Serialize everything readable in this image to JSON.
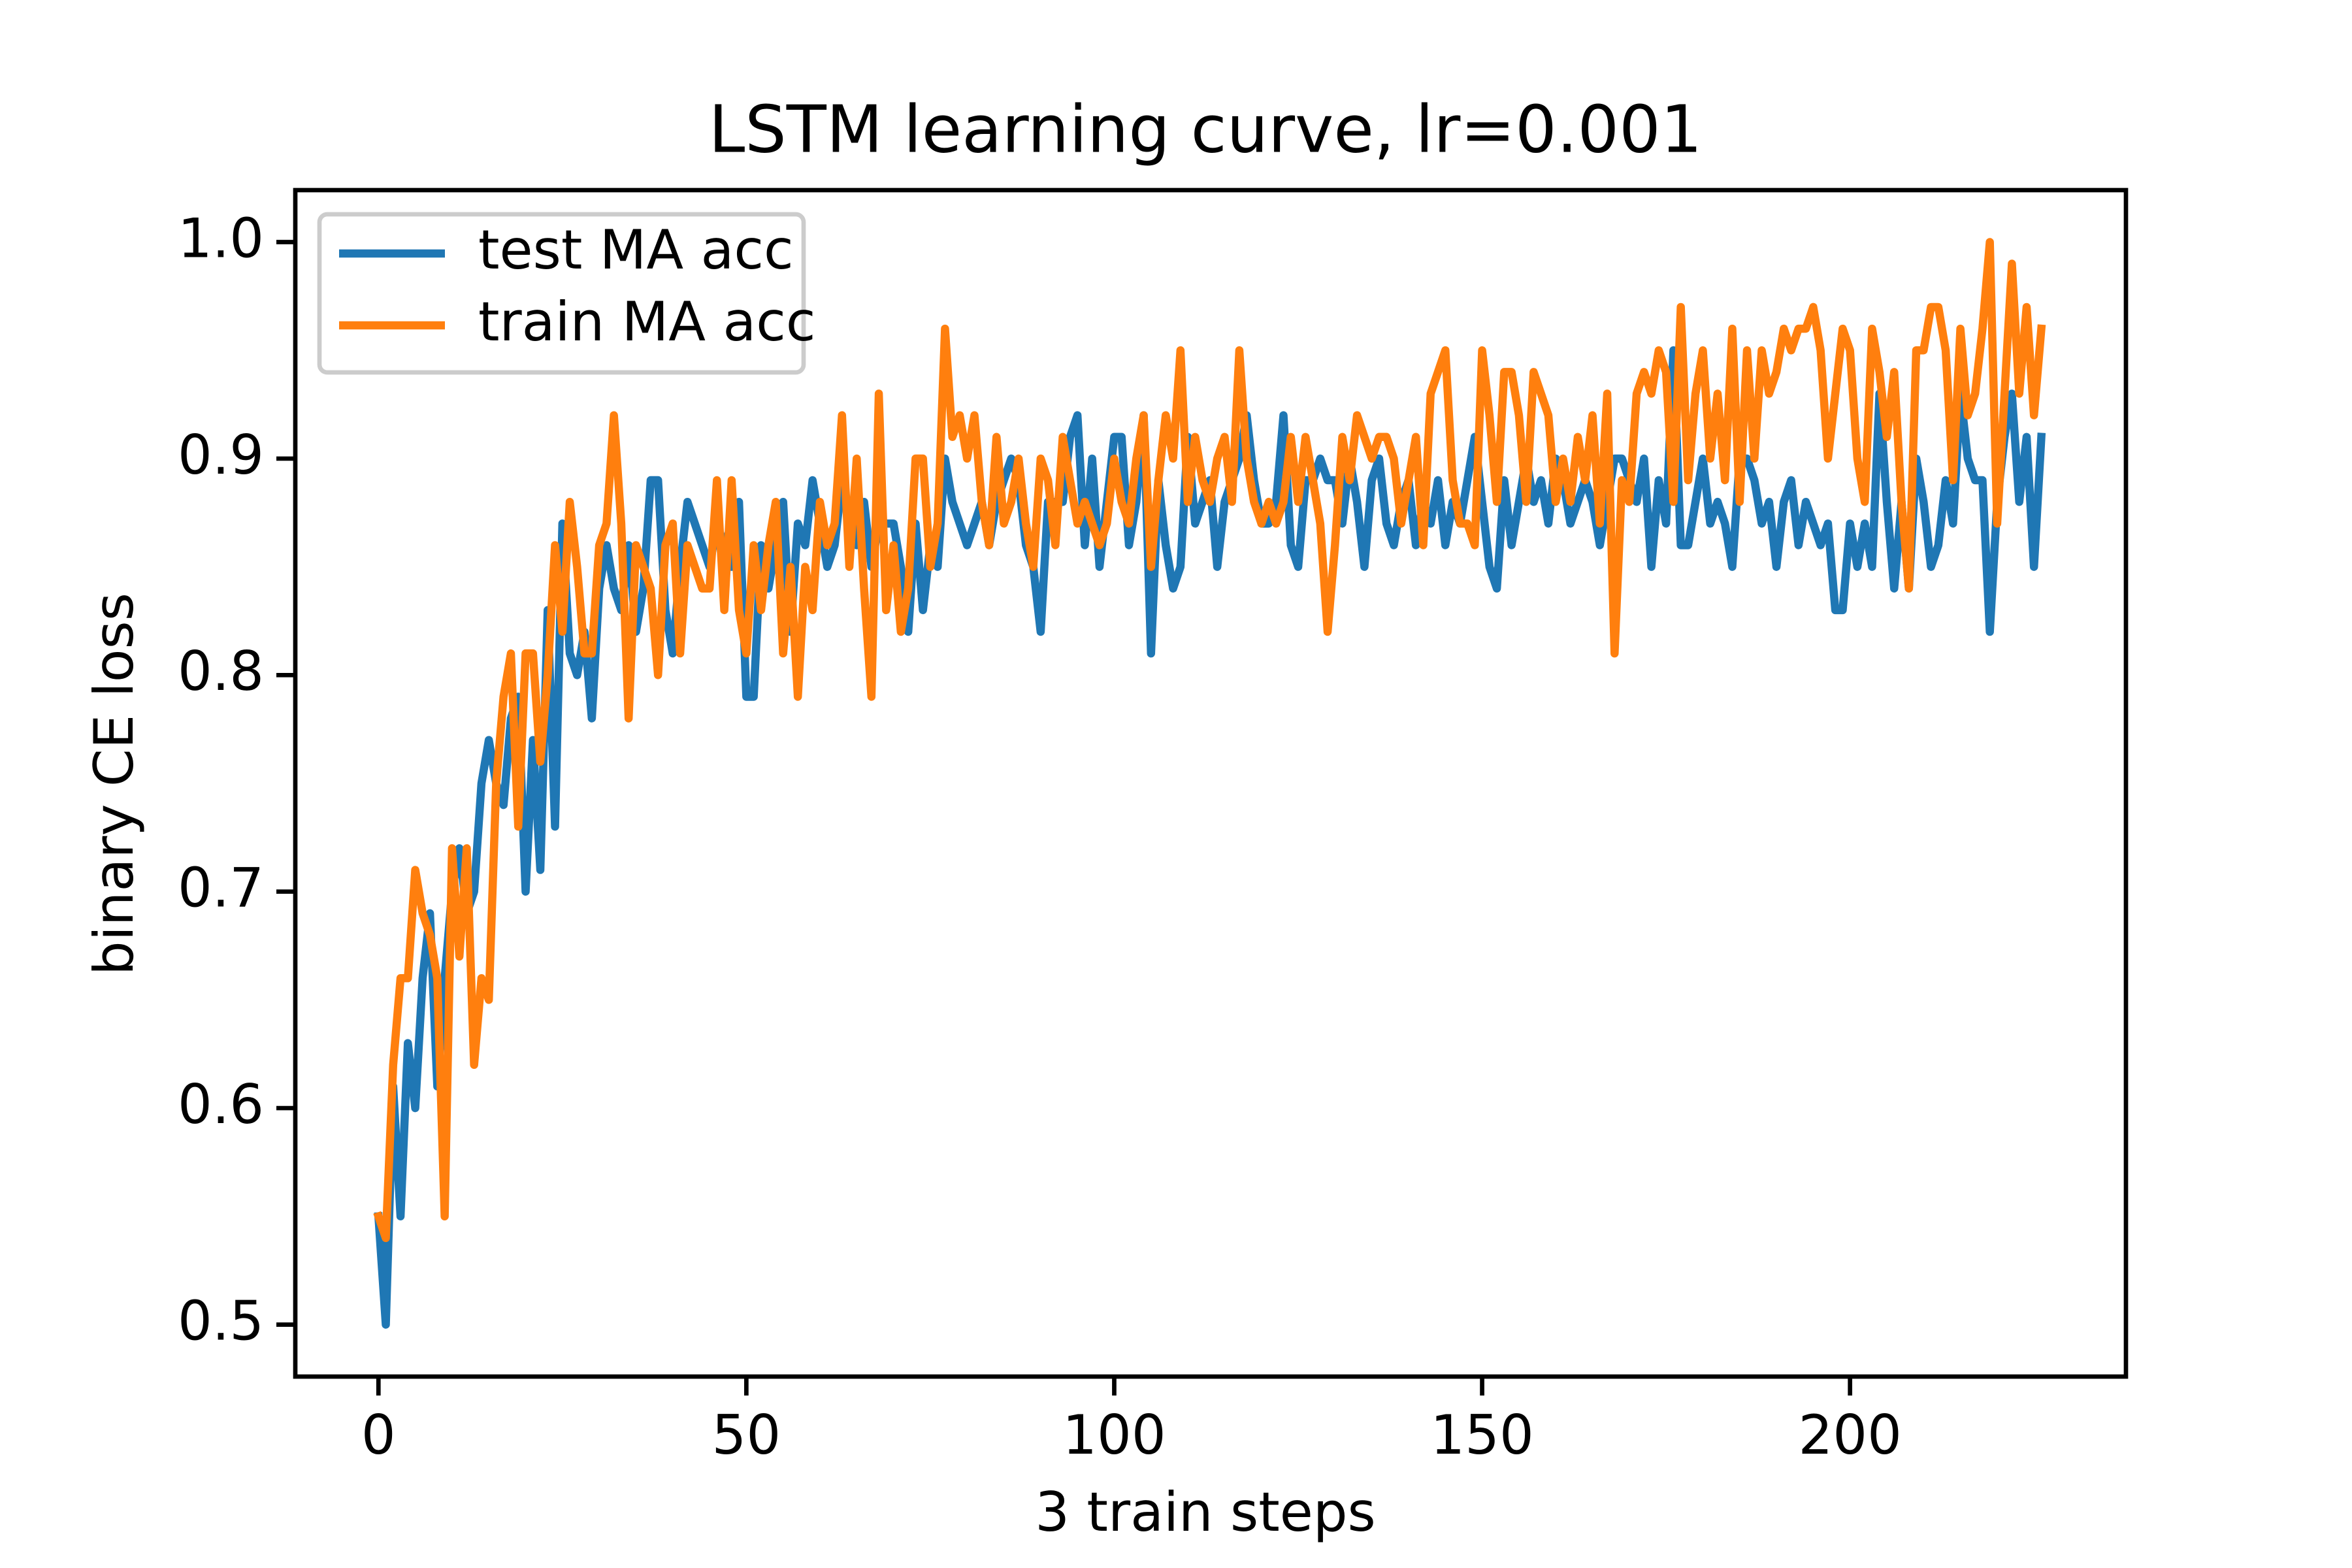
{
  "chart_data": {
    "type": "line",
    "title": "LSTM learning curve, lr=0.001",
    "x_label": "3 train steps",
    "y_label": "binary CE loss",
    "x": [
      0,
      1,
      2,
      3,
      4,
      5,
      6,
      7,
      8,
      9,
      10,
      11,
      12,
      13,
      14,
      15,
      16,
      17,
      18,
      19,
      20,
      21,
      22,
      23,
      24,
      25,
      26,
      27,
      28,
      29,
      30,
      31,
      32,
      33,
      34,
      35,
      36,
      37,
      38,
      39,
      40,
      41,
      42,
      43,
      44,
      45,
      46,
      47,
      48,
      49,
      50,
      51,
      52,
      53,
      54,
      55,
      56,
      57,
      58,
      59,
      60,
      61,
      62,
      63,
      64,
      65,
      66,
      67,
      68,
      69,
      70,
      71,
      72,
      73,
      74,
      75,
      76,
      77,
      78,
      79,
      80,
      81,
      82,
      83,
      84,
      85,
      86,
      87,
      88,
      89,
      90,
      91,
      92,
      93,
      94,
      95,
      96,
      97,
      98,
      99,
      100,
      101,
      102,
      103,
      104,
      105,
      106,
      107,
      108,
      109,
      110,
      111,
      112,
      113,
      114,
      115,
      116,
      117,
      118,
      119,
      120,
      121,
      122,
      123,
      124,
      125,
      126,
      127,
      128,
      129,
      130,
      131,
      132,
      133,
      134,
      135,
      136,
      137,
      138,
      139,
      140,
      141,
      142,
      143,
      144,
      145,
      146,
      147,
      148,
      149,
      150,
      151,
      152,
      153,
      154,
      155,
      156,
      157,
      158,
      159,
      160,
      161,
      162,
      163,
      164,
      165,
      166,
      167,
      168,
      169,
      170,
      171,
      172,
      173,
      174,
      175,
      176,
      177,
      178,
      179,
      180,
      181,
      182,
      183,
      184,
      185,
      186,
      187,
      188,
      189,
      190,
      191,
      192,
      193,
      194,
      195,
      196,
      197,
      198,
      199,
      200,
      201,
      202,
      203,
      204,
      205,
      206,
      207,
      208,
      209,
      210,
      211,
      212,
      213,
      214,
      215,
      216,
      217,
      218,
      219,
      220,
      221,
      222,
      223,
      224,
      225,
      226
    ],
    "series": [
      {
        "name": "test MA acc",
        "color": "#1f77b4",
        "values": [
          0.55,
          0.5,
          0.61,
          0.55,
          0.63,
          0.6,
          0.66,
          0.69,
          0.61,
          0.66,
          0.7,
          0.72,
          0.69,
          0.7,
          0.75,
          0.77,
          0.75,
          0.74,
          0.78,
          0.79,
          0.7,
          0.77,
          0.71,
          0.83,
          0.73,
          0.87,
          0.81,
          0.8,
          0.82,
          0.78,
          0.84,
          0.86,
          0.84,
          0.83,
          0.86,
          0.82,
          0.84,
          0.89,
          0.89,
          0.83,
          0.81,
          0.85,
          0.88,
          0.87,
          0.86,
          0.85,
          0.87,
          0.86,
          0.85,
          0.88,
          0.79,
          0.79,
          0.86,
          0.84,
          0.86,
          0.88,
          0.82,
          0.87,
          0.86,
          0.89,
          0.87,
          0.85,
          0.86,
          0.89,
          0.87,
          0.86,
          0.88,
          0.85,
          0.87,
          0.87,
          0.87,
          0.85,
          0.82,
          0.87,
          0.83,
          0.86,
          0.85,
          0.9,
          0.88,
          0.87,
          0.86,
          0.87,
          0.88,
          0.86,
          0.88,
          0.89,
          0.9,
          0.89,
          0.86,
          0.85,
          0.82,
          0.88,
          0.88,
          0.88,
          0.91,
          0.92,
          0.86,
          0.9,
          0.85,
          0.88,
          0.91,
          0.91,
          0.86,
          0.88,
          0.92,
          0.81,
          0.89,
          0.86,
          0.84,
          0.85,
          0.91,
          0.87,
          0.88,
          0.89,
          0.85,
          0.88,
          0.89,
          0.9,
          0.92,
          0.89,
          0.87,
          0.87,
          0.88,
          0.92,
          0.86,
          0.85,
          0.89,
          0.89,
          0.9,
          0.89,
          0.89,
          0.87,
          0.9,
          0.88,
          0.85,
          0.89,
          0.9,
          0.87,
          0.86,
          0.88,
          0.89,
          0.86,
          0.88,
          0.87,
          0.89,
          0.86,
          0.88,
          0.87,
          0.89,
          0.91,
          0.88,
          0.85,
          0.84,
          0.89,
          0.86,
          0.88,
          0.9,
          0.88,
          0.89,
          0.87,
          0.9,
          0.89,
          0.87,
          0.88,
          0.89,
          0.88,
          0.86,
          0.88,
          0.9,
          0.9,
          0.89,
          0.88,
          0.9,
          0.85,
          0.89,
          0.87,
          0.95,
          0.86,
          0.86,
          0.88,
          0.9,
          0.87,
          0.88,
          0.87,
          0.85,
          0.9,
          0.9,
          0.89,
          0.87,
          0.88,
          0.85,
          0.88,
          0.89,
          0.86,
          0.88,
          0.87,
          0.86,
          0.87,
          0.83,
          0.83,
          0.87,
          0.85,
          0.87,
          0.85,
          0.93,
          0.88,
          0.84,
          0.88,
          0.84,
          0.9,
          0.88,
          0.85,
          0.86,
          0.89,
          0.87,
          0.93,
          0.9,
          0.89,
          0.89,
          0.82,
          0.88,
          0.91,
          0.93,
          0.88,
          0.91,
          0.85,
          0.91
        ]
      },
      {
        "name": "train MA acc",
        "color": "#ff7f0e",
        "values": [
          0.55,
          0.54,
          0.62,
          0.66,
          0.66,
          0.71,
          0.69,
          0.68,
          0.66,
          0.55,
          0.72,
          0.67,
          0.72,
          0.62,
          0.66,
          0.65,
          0.75,
          0.79,
          0.81,
          0.73,
          0.81,
          0.81,
          0.76,
          0.8,
          0.86,
          0.82,
          0.88,
          0.85,
          0.81,
          0.81,
          0.86,
          0.87,
          0.92,
          0.87,
          0.78,
          0.86,
          0.85,
          0.84,
          0.8,
          0.86,
          0.87,
          0.81,
          0.86,
          0.85,
          0.84,
          0.84,
          0.89,
          0.83,
          0.89,
          0.83,
          0.81,
          0.86,
          0.83,
          0.86,
          0.88,
          0.81,
          0.85,
          0.79,
          0.85,
          0.83,
          0.88,
          0.86,
          0.87,
          0.92,
          0.85,
          0.9,
          0.84,
          0.79,
          0.93,
          0.83,
          0.86,
          0.82,
          0.84,
          0.9,
          0.9,
          0.85,
          0.87,
          0.96,
          0.91,
          0.92,
          0.9,
          0.92,
          0.88,
          0.86,
          0.91,
          0.87,
          0.88,
          0.9,
          0.87,
          0.85,
          0.9,
          0.89,
          0.86,
          0.91,
          0.89,
          0.87,
          0.88,
          0.87,
          0.86,
          0.87,
          0.9,
          0.88,
          0.87,
          0.9,
          0.92,
          0.85,
          0.89,
          0.92,
          0.9,
          0.95,
          0.88,
          0.91,
          0.89,
          0.88,
          0.9,
          0.91,
          0.88,
          0.95,
          0.9,
          0.88,
          0.87,
          0.88,
          0.87,
          0.88,
          0.91,
          0.88,
          0.91,
          0.89,
          0.87,
          0.82,
          0.86,
          0.91,
          0.89,
          0.92,
          0.91,
          0.9,
          0.91,
          0.91,
          0.9,
          0.87,
          0.89,
          0.91,
          0.86,
          0.93,
          0.94,
          0.95,
          0.89,
          0.87,
          0.87,
          0.86,
          0.95,
          0.92,
          0.88,
          0.94,
          0.94,
          0.92,
          0.88,
          0.94,
          0.93,
          0.92,
          0.88,
          0.9,
          0.88,
          0.91,
          0.89,
          0.92,
          0.87,
          0.93,
          0.81,
          0.89,
          0.88,
          0.93,
          0.94,
          0.93,
          0.95,
          0.94,
          0.88,
          0.97,
          0.89,
          0.93,
          0.95,
          0.9,
          0.93,
          0.89,
          0.96,
          0.88,
          0.95,
          0.9,
          0.95,
          0.93,
          0.94,
          0.96,
          0.95,
          0.96,
          0.96,
          0.97,
          0.95,
          0.9,
          0.93,
          0.96,
          0.95,
          0.9,
          0.88,
          0.96,
          0.94,
          0.91,
          0.94,
          0.88,
          0.84,
          0.95,
          0.95,
          0.97,
          0.97,
          0.95,
          0.89,
          0.96,
          0.92,
          0.93,
          0.96,
          1.0,
          0.87,
          0.93,
          0.99,
          0.93,
          0.97,
          0.92,
          0.96
        ]
      }
    ],
    "xlim": [
      -11.3,
      237.5
    ],
    "xticks": [
      0,
      50,
      100,
      150,
      200
    ],
    "ylim": [
      0.476,
      1.024
    ],
    "yticks": [
      0.5,
      0.6,
      0.7,
      0.8,
      0.9,
      {
        "value": 1,
        "label": "1.0"
      }
    ],
    "legend": "upper left",
    "grid": false
  }
}
